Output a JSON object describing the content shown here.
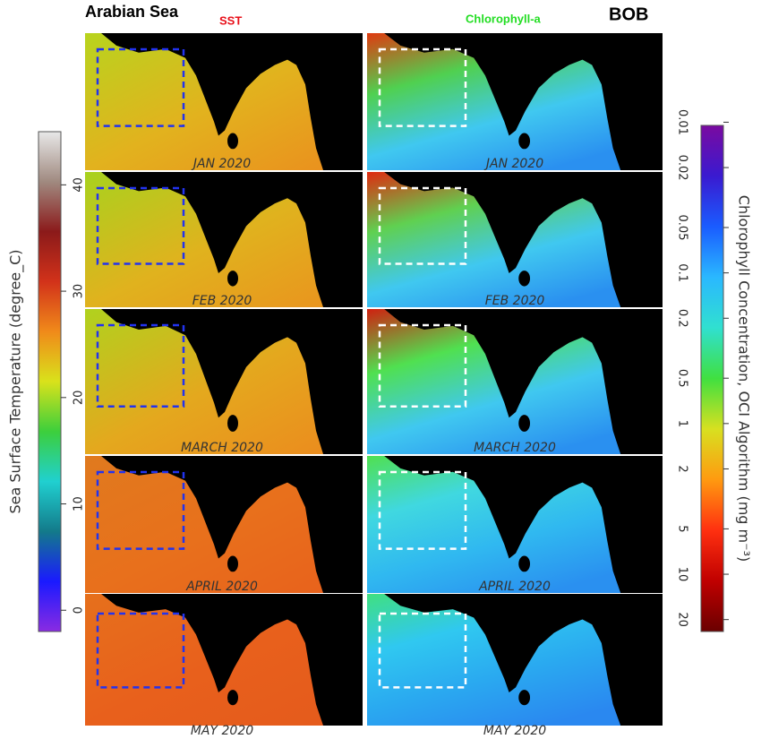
{
  "header": {
    "left_title": "Arabian Sea",
    "sst_title": "SST",
    "chl_title": "Chlorophyll-a",
    "right_title": "BOB"
  },
  "panels": [
    {
      "sst": "JAN 2020",
      "chl": "JAN 2020"
    },
    {
      "sst": "FEB 2020",
      "chl": "FEB 2020"
    },
    {
      "sst": "MARCH 2020",
      "chl": "MARCH 2020"
    },
    {
      "sst": "APRIL 2020",
      "chl": "APRIL 2020"
    },
    {
      "sst": "MAY 2020",
      "chl": "MAY 2020"
    }
  ],
  "sst_colorbar": {
    "label": "Sea Surface Temperature (degree_C)",
    "lim": [
      -2,
      45
    ],
    "ticks": [
      0,
      10,
      20,
      30,
      40
    ],
    "colors": [
      "#8a2be2",
      "#1a1aff",
      "#137a8a",
      "#20d0d0",
      "#3ccf3c",
      "#d9e21b",
      "#f08a1a",
      "#d2321a",
      "#8b1a1a",
      "#a08a80",
      "#e8e8e8"
    ]
  },
  "chl_colorbar": {
    "label": "Chlorophyll Concentration, OCI Algorithm (mg m⁻³)",
    "lim": [
      0.0105,
      24
    ],
    "log": true,
    "ticks": [
      0.01,
      0.02,
      0.05,
      0.1,
      0.2,
      0.5,
      1,
      2,
      5,
      10,
      20
    ],
    "colors": [
      "#7a0aa0",
      "#3a1ad0",
      "#1a5cff",
      "#2ab8ff",
      "#30e0d0",
      "#40e040",
      "#d8e020",
      "#ff9a10",
      "#ff3010",
      "#c00000",
      "#6a0000"
    ]
  }
}
